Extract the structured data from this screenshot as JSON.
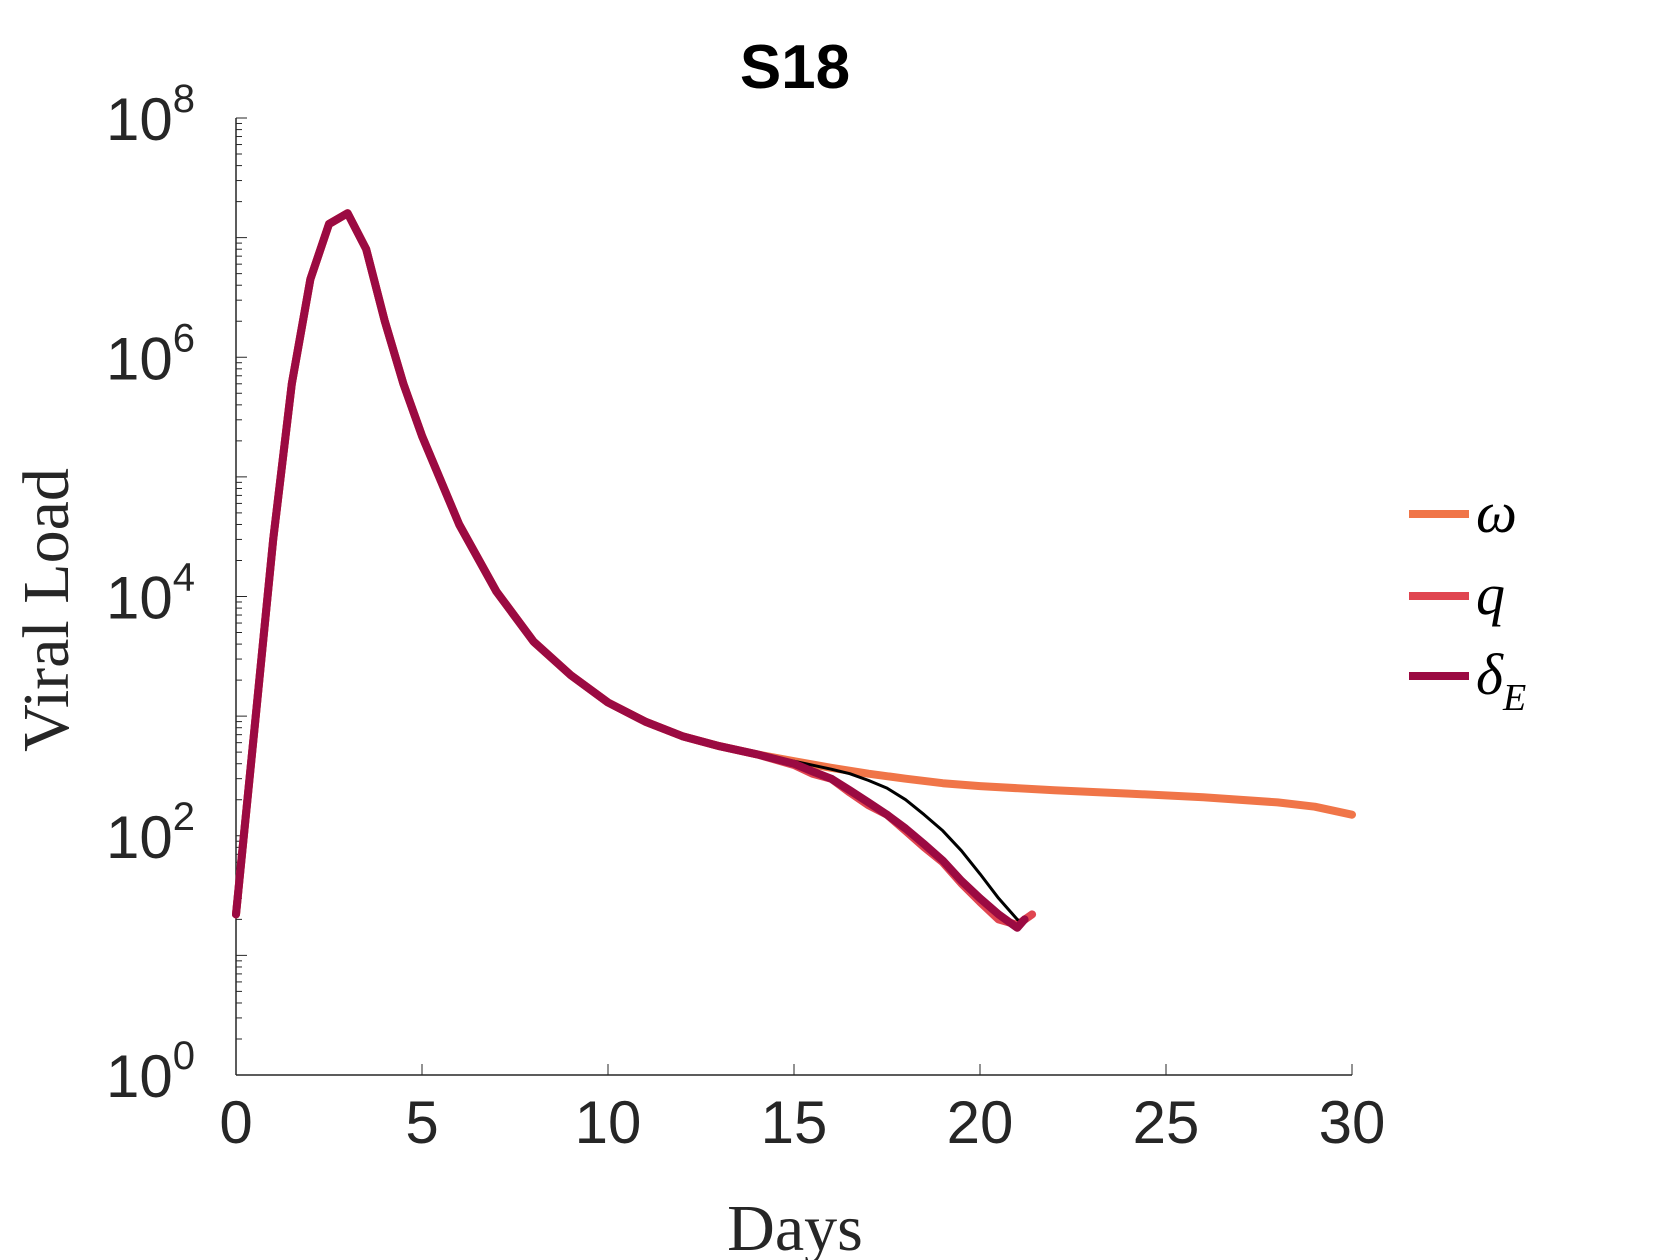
{
  "chart_data": {
    "type": "line",
    "title": "S18",
    "xlabel": "Days",
    "ylabel": "Viral Load",
    "xlim": [
      0,
      30
    ],
    "ylim": [
      1,
      100000000
    ],
    "yscale": "log",
    "xticks": [
      0,
      5,
      10,
      15,
      20,
      25,
      30
    ],
    "xtick_labels": [
      "0",
      "5",
      "10",
      "15",
      "20",
      "25",
      "30"
    ],
    "yticks": [
      {
        "value": 1,
        "base": "10",
        "exp": "0"
      },
      {
        "value": 100,
        "base": "10",
        "exp": "2"
      },
      {
        "value": 10000,
        "base": "10",
        "exp": "4"
      },
      {
        "value": 1000000,
        "base": "10",
        "exp": "6"
      },
      {
        "value": 100000000,
        "base": "10",
        "exp": "8"
      }
    ],
    "grid": false,
    "legend_position": "right",
    "series": [
      {
        "name": "ω",
        "legend_main": "ω",
        "legend_sub": "",
        "color": "#f07548",
        "x": [
          0,
          0.5,
          1,
          1.5,
          2,
          2.5,
          3,
          3.5,
          4,
          4.5,
          5,
          6,
          7,
          8,
          9,
          10,
          11,
          12,
          13,
          14,
          15,
          16,
          17,
          18,
          19,
          20,
          22,
          24,
          26,
          28,
          29,
          30
        ],
        "y": [
          22,
          800,
          30000,
          600000,
          4500000,
          13000000,
          16000000,
          8000000,
          2000000,
          600000,
          220000,
          40000,
          11000,
          4200,
          2200,
          1300,
          900,
          680,
          560,
          480,
          420,
          370,
          330,
          300,
          275,
          260,
          240,
          225,
          210,
          190,
          175,
          150
        ]
      },
      {
        "name": "q",
        "legend_main": "q",
        "legend_sub": "",
        "color": "#e04550",
        "x": [
          0,
          0.5,
          1,
          1.5,
          2,
          2.5,
          3,
          3.5,
          4,
          4.5,
          5,
          6,
          7,
          8,
          9,
          10,
          11,
          12,
          13,
          14,
          15,
          15.5,
          16,
          16.5,
          17,
          17.5,
          18,
          18.5,
          19,
          19.5,
          20,
          20.5,
          21,
          21.4
        ],
        "y": [
          22,
          800,
          30000,
          600000,
          4500000,
          13000000,
          16000000,
          8000000,
          2000000,
          600000,
          220000,
          40000,
          11000,
          4200,
          2200,
          1300,
          900,
          680,
          560,
          480,
          390,
          330,
          300,
          230,
          180,
          150,
          110,
          80,
          60,
          40,
          28,
          20,
          18,
          22
        ]
      },
      {
        "name": "δE",
        "legend_main": "δ",
        "legend_sub": "E",
        "color": "#9b0a42",
        "x": [
          0,
          0.5,
          1,
          1.5,
          2,
          2.5,
          3,
          3.5,
          4,
          4.5,
          5,
          6,
          7,
          8,
          9,
          10,
          11,
          12,
          13,
          14,
          15,
          15.5,
          16,
          16.5,
          17,
          17.5,
          18,
          18.5,
          19,
          19.5,
          20,
          20.5,
          21,
          21.2
        ],
        "y": [
          22,
          800,
          30000,
          600000,
          4500000,
          13000000,
          16000000,
          8000000,
          2000000,
          600000,
          220000,
          40000,
          11000,
          4200,
          2200,
          1300,
          900,
          680,
          560,
          480,
          400,
          345,
          300,
          240,
          190,
          150,
          115,
          85,
          62,
          42,
          30,
          22,
          17,
          20
        ]
      },
      {
        "name": "",
        "color": "#000000",
        "x": [
          14,
          15,
          16,
          16.5,
          17,
          17.5,
          18,
          18.5,
          19,
          19.5,
          20,
          20.5,
          21,
          21.1
        ],
        "y": [
          480,
          420,
          360,
          330,
          290,
          250,
          200,
          150,
          110,
          75,
          48,
          30,
          20,
          19
        ]
      }
    ]
  }
}
